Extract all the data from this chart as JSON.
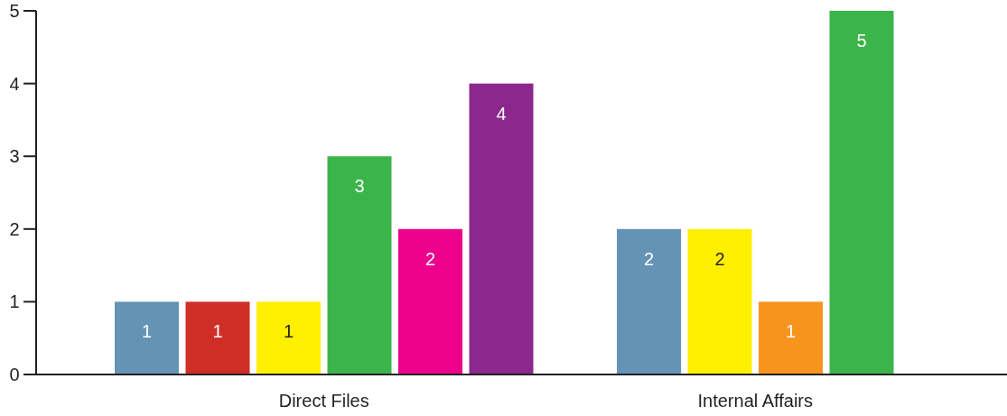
{
  "chart_data": {
    "type": "bar",
    "categories": [
      "Direct Files",
      "Internal Affairs"
    ],
    "series": [
      {
        "color": "#6593b5",
        "values": [
          1,
          2
        ]
      },
      {
        "color": "#cf2e27",
        "values": [
          1,
          null
        ]
      },
      {
        "color": "#fff000",
        "values": [
          1,
          2
        ]
      },
      {
        "color": "#f7941d",
        "values": [
          null,
          1
        ]
      },
      {
        "color": "#3bb54a",
        "values": [
          3,
          5
        ]
      },
      {
        "color": "#ec008c",
        "values": [
          2,
          null
        ]
      },
      {
        "color": "#8b278d",
        "values": [
          4,
          null
        ]
      }
    ],
    "ylim": [
      0,
      5
    ],
    "yticks": [
      0,
      1,
      2,
      3,
      4,
      5
    ],
    "grid": false,
    "data_labels": true
  }
}
